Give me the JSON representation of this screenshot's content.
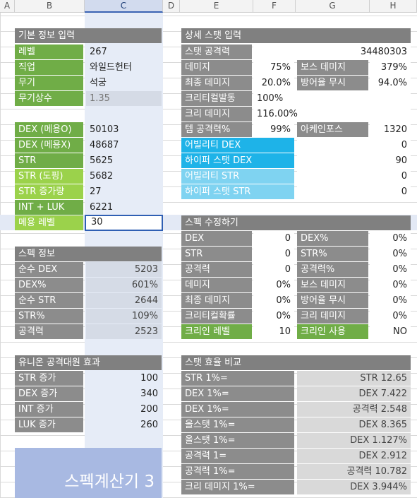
{
  "columns": [
    "A",
    "B",
    "C",
    "D",
    "E",
    "F",
    "G",
    "H"
  ],
  "basic": {
    "title": "기본 정보 입력",
    "level_label": "레벨",
    "level": "267",
    "job_label": "직업",
    "job": "와일드헌터",
    "weapon_label": "무기",
    "weapon": "석궁",
    "weapon_const_label": "무기상수",
    "weapon_const": "1.35",
    "dex_eq_label": "DEX (메용O)",
    "dex_eq": "50103",
    "dex_ex_label": "DEX (메용X)",
    "dex_ex": "48687",
    "str_label": "STR",
    "str": "5625",
    "str_dp_label": "STR (도핑)",
    "str_dp": "5682",
    "str_inc_label": "STR 증가량",
    "str_inc": "27",
    "intluk_label": "INT + LUK",
    "intluk": "6221",
    "meyong_label": "메용 레벨",
    "meyong": "30"
  },
  "spec": {
    "title": "스펙 정보",
    "rows": [
      {
        "label": "순수 DEX",
        "value": "5203"
      },
      {
        "label": "DEX%",
        "value": "601%"
      },
      {
        "label": "순수 STR",
        "value": "2644"
      },
      {
        "label": "STR%",
        "value": "109%"
      },
      {
        "label": "공격력",
        "value": "2523"
      }
    ]
  },
  "union": {
    "title": "유니온 공격대원 효과",
    "rows": [
      {
        "label": "STR 증가",
        "value": "100"
      },
      {
        "label": "DEX 증가",
        "value": "340"
      },
      {
        "label": "INT 증가",
        "value": "200"
      },
      {
        "label": "LUK 증가",
        "value": "260"
      }
    ]
  },
  "detail": {
    "title": "상세 스탯 입력",
    "stat_atk_label": "스탯 공격력",
    "stat_atk": "34480303",
    "damage_label": "데미지",
    "damage": "75%",
    "boss_label": "보스 데미지",
    "boss": "379%",
    "final_label": "최종 데미지",
    "final": "20.0%",
    "ignore_label": "방어율 무시",
    "ignore": "94.0%",
    "crit_rate_label": "크리티컬발동",
    "crit_rate": "100%",
    "crit_dmg_label": "크리 데미지",
    "crit_dmg": "116.00%",
    "item_atk_label": "템 공격력%",
    "item_atk": "99%",
    "arcane_label": "아케인포스",
    "arcane": "1320",
    "ability_dex_label": "어빌리티 DEX",
    "ability_dex": "0",
    "hyper_dex_label": "하이퍼 스탯 DEX",
    "hyper_dex": "90",
    "ability_str_label": "어빌리티 STR",
    "ability_str": "0",
    "hyper_str_label": "하이퍼 스탯 STR",
    "hyper_str": "0"
  },
  "modify": {
    "title": "스펙 수정하기",
    "rows": [
      {
        "l1": "DEX",
        "v1": "0",
        "l2": "DEX%",
        "v2": "0%"
      },
      {
        "l1": "STR",
        "v1": "0",
        "l2": "STR%",
        "v2": "0%"
      },
      {
        "l1": "공격력",
        "v1": "0",
        "l2": "공격력%",
        "v2": "0%"
      },
      {
        "l1": "데미지",
        "v1": "0%",
        "l2": "보스 데미지",
        "v2": "0%"
      },
      {
        "l1": "최종 데미지",
        "v1": "0%",
        "l2": "방어율 무시",
        "v2": "0%"
      },
      {
        "l1": "크리티컬확률",
        "v1": "0%",
        "l2": "크리 데미지",
        "v2": "0%"
      },
      {
        "l1": "크리인 레벨",
        "v1": "10",
        "l2": "크리인 사용",
        "v2": "NO"
      }
    ]
  },
  "compare": {
    "title": "스탯 효율 비교",
    "rows": [
      {
        "label": "STR 1%=",
        "value": "STR 12.65"
      },
      {
        "label": "DEX 1%=",
        "value": "DEX 7.422"
      },
      {
        "label": "DEX 1%=",
        "value": "공격력 2.548"
      },
      {
        "label": "올스탯 1%=",
        "value": "DEX 8.365"
      },
      {
        "label": "올스탯 1%=",
        "value": "DEX 1.127%"
      },
      {
        "label": "공격력 1=",
        "value": "DEX 2.912"
      },
      {
        "label": "공격력 1%=",
        "value": "공격력 10.782"
      },
      {
        "label": "크리 데미지 1%=",
        "value": "DEX 3.944%"
      }
    ]
  },
  "banner": "스펙계산기 3"
}
